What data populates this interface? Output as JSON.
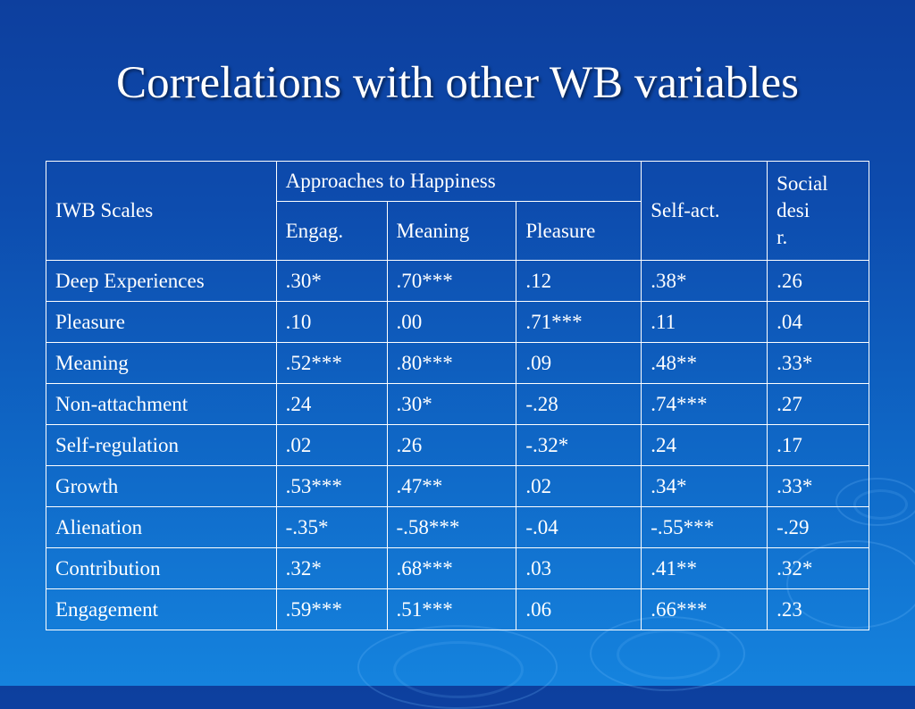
{
  "slide": {
    "title": "Correlations with other WB variables"
  },
  "table": {
    "header": {
      "scales_label": "IWB Scales",
      "approaches_label": "Approaches to Happiness",
      "self_act_label": "Self-act.",
      "social_desir_lines": [
        "Social",
        "desi",
        "r."
      ],
      "subheaders": [
        "Engag.",
        "Meaning",
        "Pleasure"
      ]
    },
    "rows": [
      {
        "scale": "Deep Experiences",
        "values": [
          ".30*",
          ".70***",
          ".12",
          ".38*",
          ".26"
        ]
      },
      {
        "scale": "Pleasure",
        "values": [
          ".10",
          ".00",
          ".71***",
          ".11",
          ".04"
        ]
      },
      {
        "scale": "Meaning",
        "values": [
          ".52***",
          ".80***",
          ".09",
          ".48**",
          ".33*"
        ]
      },
      {
        "scale": "Non-attachment",
        "values": [
          ".24",
          ".30*",
          "-.28",
          ".74***",
          ".27"
        ]
      },
      {
        "scale": "Self-regulation",
        "values": [
          ".02",
          ".26",
          "-.32*",
          ".24",
          ".17"
        ]
      },
      {
        "scale": "Growth",
        "values": [
          ".53***",
          ".47**",
          ".02",
          ".34*",
          ".33*"
        ]
      },
      {
        "scale": "Alienation",
        "values": [
          "-.35*",
          "-.58***",
          "-.04",
          "-.55***",
          "-.29"
        ]
      },
      {
        "scale": "Contribution",
        "values": [
          ".32*",
          ".68***",
          ".03",
          ".41**",
          ".32*"
        ]
      },
      {
        "scale": "Engagement",
        "values": [
          ".59***",
          ".51***",
          ".06",
          ".66***",
          ".23"
        ]
      }
    ]
  }
}
